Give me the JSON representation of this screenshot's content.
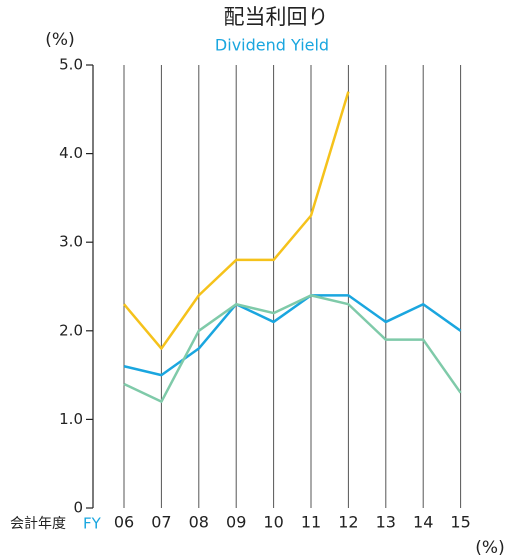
{
  "chart_data": {
    "type": "line",
    "title": "配当利回り",
    "subtitle": "Dividend Yield",
    "y_unit": "(%)",
    "x_label": "会計年度",
    "x_label_en": "FY",
    "x_unit": "(%)",
    "categories": [
      "06",
      "07",
      "08",
      "09",
      "10",
      "11",
      "12",
      "13",
      "14",
      "15"
    ],
    "series": [
      {
        "color": "#f5c21b",
        "values": [
          2.3,
          1.8,
          2.4,
          2.8,
          2.8,
          3.3,
          4.7,
          null,
          null,
          null
        ]
      },
      {
        "color": "#1aa6df",
        "values": [
          1.6,
          1.5,
          1.8,
          2.3,
          2.1,
          2.4,
          2.4,
          2.1,
          2.3,
          2.0
        ]
      },
      {
        "color": "#7fcaa9",
        "values": [
          1.4,
          1.2,
          2.0,
          2.3,
          2.2,
          2.4,
          2.3,
          1.9,
          1.9,
          1.3
        ]
      }
    ],
    "ylim": [
      0,
      5
    ],
    "yticks": [
      0,
      {
        "value": 1,
        "label": "1.0"
      },
      {
        "value": 2,
        "label": "2.0"
      },
      {
        "value": 3,
        "label": "3.0"
      },
      {
        "value": 4,
        "label": "4.0"
      },
      {
        "value": 5,
        "label": "5.0"
      }
    ],
    "grid": true
  }
}
